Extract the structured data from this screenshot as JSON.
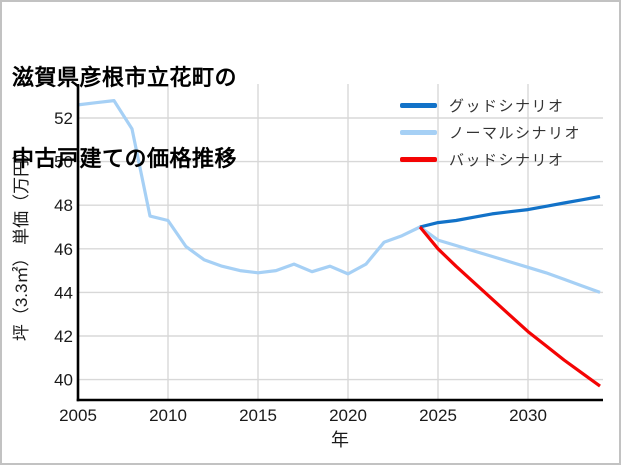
{
  "chart_data": {
    "type": "line",
    "title": "滋賀県彦根市立花町の中古戸建ての価格推移",
    "title_lines": [
      "滋賀県彦根市立花町の",
      "中古戸建ての価格推移"
    ],
    "xlabel": "年",
    "ylabel": "坪（3.3㎡） 単価（万円）",
    "x_ticks": [
      2005,
      2010,
      2015,
      2020,
      2025,
      2030
    ],
    "y_ticks": [
      40,
      42,
      44,
      46,
      48,
      50,
      52
    ],
    "xlim": [
      2005,
      2034.2
    ],
    "ylim": [
      39.1,
      53.6
    ],
    "grid": true,
    "legend_position": "upper right",
    "grid_color": "#d8d8d8",
    "series": [
      {
        "name": "グッドシナリオ",
        "color": "#1272c8",
        "x": [
          2024,
          2025,
          2026,
          2027,
          2028,
          2029,
          2030,
          2031,
          2032,
          2033,
          2034
        ],
        "y": [
          47.0,
          47.2,
          47.3,
          47.45,
          47.6,
          47.7,
          47.8,
          47.95,
          48.1,
          48.25,
          48.4
        ]
      },
      {
        "name": "ノーマルシナリオ",
        "color": "#a6d0f5",
        "x": [
          2005,
          2006,
          2007,
          2008,
          2009,
          2010,
          2011,
          2012,
          2013,
          2014,
          2015,
          2016,
          2017,
          2018,
          2019,
          2020,
          2021,
          2022,
          2023,
          2024,
          2025,
          2026,
          2027,
          2028,
          2029,
          2030,
          2031,
          2032,
          2033,
          2034
        ],
        "y": [
          52.6,
          52.7,
          52.8,
          51.5,
          47.5,
          47.3,
          46.1,
          45.5,
          45.2,
          45.0,
          44.9,
          45.0,
          45.3,
          44.95,
          45.2,
          44.85,
          45.3,
          46.3,
          46.6,
          47.0,
          46.4,
          46.15,
          45.9,
          45.65,
          45.4,
          45.15,
          44.9,
          44.6,
          44.3,
          44.0
        ]
      },
      {
        "name": "バッドシナリオ",
        "color": "#f40404",
        "x": [
          2024,
          2025,
          2026,
          2027,
          2028,
          2029,
          2030,
          2031,
          2032,
          2033,
          2034
        ],
        "y": [
          47.0,
          46.0,
          45.2,
          44.45,
          43.7,
          42.95,
          42.2,
          41.55,
          40.9,
          40.3,
          39.7
        ]
      }
    ]
  }
}
